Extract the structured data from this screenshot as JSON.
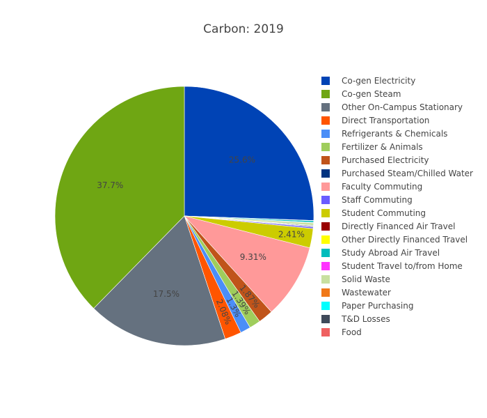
{
  "chart_data": {
    "type": "pie",
    "title": "Carbon: 2019",
    "legend_position": "right",
    "sort": "none",
    "direction": "clockwise",
    "slices": [
      {
        "label": "Co-gen Electricity",
        "value": 25.6,
        "color": "#0043b5",
        "text": "25.6%",
        "show_text": true
      },
      {
        "label": "Other Directly Financed Travel",
        "value": 0.05,
        "color": "#ffff00",
        "text": "",
        "show_text": false
      },
      {
        "label": "Study Abroad Air Travel",
        "value": 0.2,
        "color": "#00bcbc",
        "text": "",
        "show_text": false
      },
      {
        "label": "Student Travel to/from Home",
        "value": 0.05,
        "color": "#ff33ff",
        "text": "",
        "show_text": false
      },
      {
        "label": "Solid Waste",
        "value": 0.3,
        "color": "#c8e0a0",
        "text": "",
        "show_text": false
      },
      {
        "label": "Paper Purchasing",
        "value": 0.05,
        "color": "#00ffff",
        "text": "",
        "show_text": false
      },
      {
        "label": "T&D Losses",
        "value": 0.1,
        "color": "#3f4a5a",
        "text": "",
        "show_text": false
      },
      {
        "label": "Food",
        "value": 0.05,
        "color": "#ef6060",
        "text": "",
        "show_text": false
      },
      {
        "label": "Staff Commuting",
        "value": 0.2,
        "color": "#6a5cff",
        "text": "",
        "show_text": false
      },
      {
        "label": "Student Commuting",
        "value": 2.41,
        "color": "#cccc00",
        "text": "2.41%",
        "show_text": true
      },
      {
        "label": "Faculty Commuting",
        "value": 9.31,
        "color": "#ff9999",
        "text": "9.31%",
        "show_text": true
      },
      {
        "label": "Purchased Electricity",
        "value": 1.87,
        "color": "#c0541a",
        "text": "1.87%",
        "show_text": true
      },
      {
        "label": "Fertilizer & Animals",
        "value": 1.39,
        "color": "#9fcd5c",
        "text": "1.39%",
        "show_text": true
      },
      {
        "label": "Refrigerants & Chemicals",
        "value": 1.3,
        "color": "#4b8ef7",
        "text": "1.3%",
        "show_text": true
      },
      {
        "label": "Direct Transportation",
        "value": 2.08,
        "color": "#ff5500",
        "text": "2.08%",
        "show_text": true
      },
      {
        "label": "Other On-Campus Stationary",
        "value": 17.5,
        "color": "#65717f",
        "text": "17.5%",
        "show_text": true
      },
      {
        "label": "Co-gen Steam",
        "value": 37.7,
        "color": "#6fa613",
        "text": "37.7%",
        "show_text": true
      }
    ],
    "legend": [
      {
        "label": "Co-gen Electricity",
        "color": "#0043b5"
      },
      {
        "label": "Co-gen Steam",
        "color": "#6fa613"
      },
      {
        "label": "Other On-Campus Stationary",
        "color": "#65717f"
      },
      {
        "label": "Direct Transportation",
        "color": "#ff5500"
      },
      {
        "label": "Refrigerants & Chemicals",
        "color": "#4b8ef7"
      },
      {
        "label": "Fertilizer & Animals",
        "color": "#9fcd5c"
      },
      {
        "label": "Purchased Electricity",
        "color": "#c0541a"
      },
      {
        "label": "Purchased Steam/Chilled Water",
        "color": "#003380"
      },
      {
        "label": "Faculty Commuting",
        "color": "#ff9999"
      },
      {
        "label": "Staff Commuting",
        "color": "#6a5cff"
      },
      {
        "label": "Student Commuting",
        "color": "#cccc00"
      },
      {
        "label": "Directly Financed Air Travel",
        "color": "#990000"
      },
      {
        "label": "Other Directly Financed Travel",
        "color": "#ffff00"
      },
      {
        "label": "Study Abroad Air Travel",
        "color": "#00bcbc"
      },
      {
        "label": "Student Travel to/from Home",
        "color": "#ff33ff"
      },
      {
        "label": "Solid Waste",
        "color": "#c8e0a0"
      },
      {
        "label": "Wastewater",
        "color": "#f07818"
      },
      {
        "label": "Paper Purchasing",
        "color": "#00ffff"
      },
      {
        "label": "T&D Losses",
        "color": "#3f4a5a"
      },
      {
        "label": "Food",
        "color": "#ef6060"
      }
    ]
  }
}
